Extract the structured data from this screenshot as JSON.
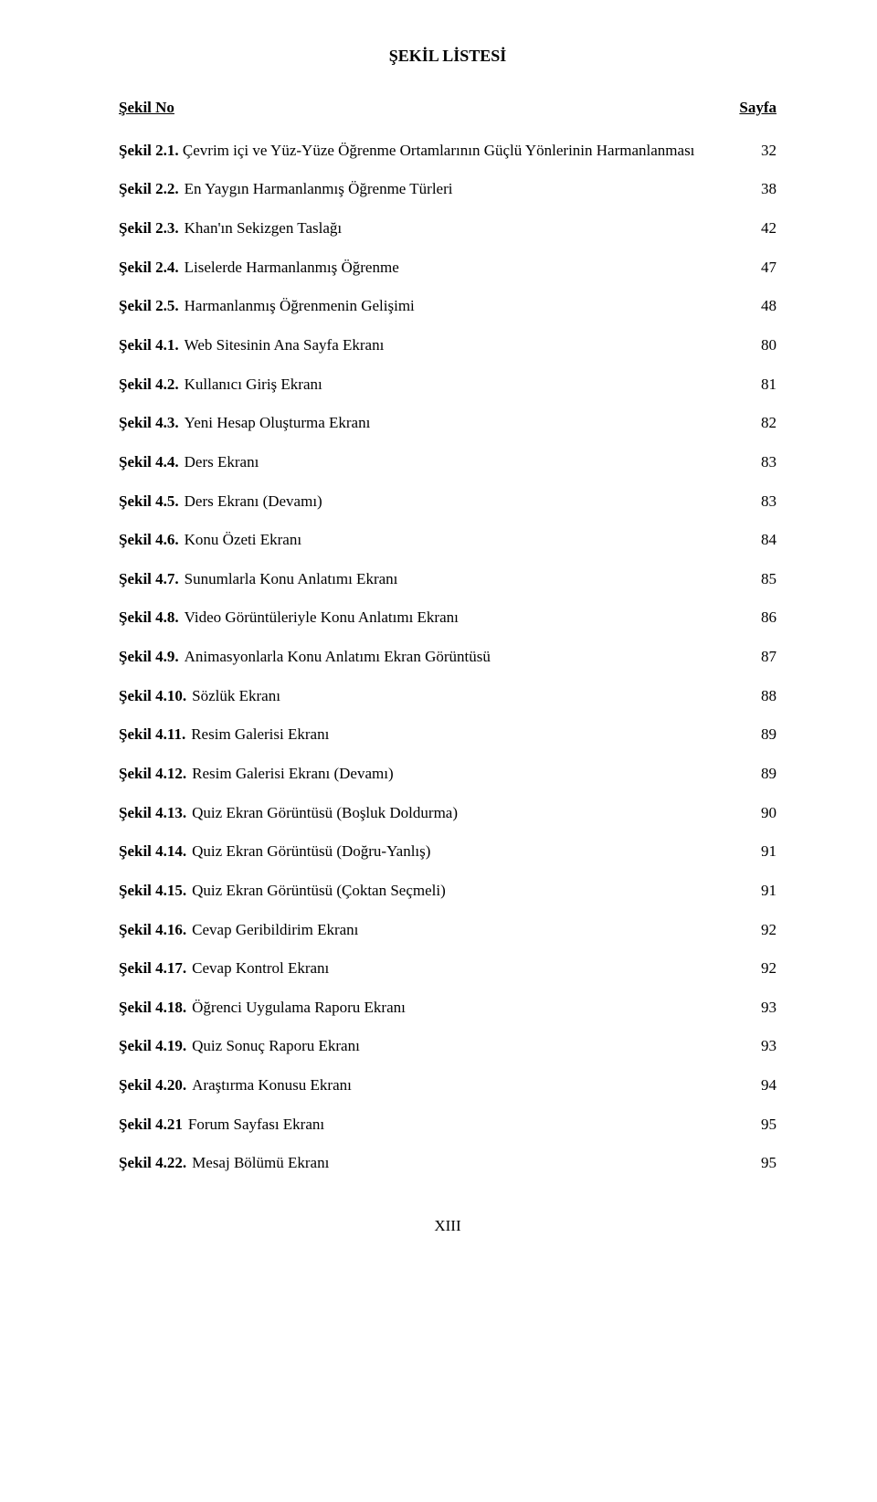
{
  "title": "ŞEKİL LİSTESİ",
  "header": {
    "left": "Şekil No",
    "right": "Sayfa"
  },
  "entries": [
    {
      "key": "Şekil 2.1.",
      "desc": "Çevrim içi ve Yüz-Yüze Öğrenme Ortamlarının Güçlü Yönlerinin Harmanlanması",
      "page": "32",
      "multiline": true
    },
    {
      "key": "Şekil 2.2.",
      "desc": "En Yaygın Harmanlanmış Öğrenme Türleri",
      "page": "38"
    },
    {
      "key": "Şekil 2.3.",
      "desc": "Khan'ın Sekizgen Taslağı",
      "page": "42"
    },
    {
      "key": "Şekil 2.4.",
      "desc": "Liselerde Harmanlanmış Öğrenme",
      "page": "47"
    },
    {
      "key": "Şekil 2.5.",
      "desc": "Harmanlanmış Öğrenmenin Gelişimi",
      "page": "48"
    },
    {
      "key": "Şekil 4.1.",
      "desc": "Web Sitesinin Ana Sayfa Ekranı",
      "page": "80"
    },
    {
      "key": "Şekil 4.2.",
      "desc": "Kullanıcı Giriş Ekranı",
      "page": "81"
    },
    {
      "key": "Şekil 4.3.",
      "desc": "Yeni Hesap Oluşturma Ekranı",
      "page": "82"
    },
    {
      "key": "Şekil 4.4.",
      "desc": "Ders Ekranı",
      "page": "83"
    },
    {
      "key": "Şekil 4.5.",
      "desc": "Ders Ekranı (Devamı)",
      "page": "83"
    },
    {
      "key": "Şekil 4.6.",
      "desc": "Konu Özeti Ekranı",
      "page": "84"
    },
    {
      "key": "Şekil 4.7.",
      "desc": "Sunumlarla Konu Anlatımı Ekranı",
      "page": "85"
    },
    {
      "key": "Şekil 4.8.",
      "desc": "Video Görüntüleriyle Konu Anlatımı Ekranı",
      "page": "86"
    },
    {
      "key": "Şekil 4.9.",
      "desc": "Animasyonlarla Konu Anlatımı Ekran Görüntüsü",
      "page": "87"
    },
    {
      "key": "Şekil 4.10.",
      "desc": "Sözlük Ekranı",
      "page": "88"
    },
    {
      "key": "Şekil 4.11.",
      "desc": "Resim Galerisi Ekranı",
      "page": "89"
    },
    {
      "key": "Şekil 4.12.",
      "desc": "Resim Galerisi Ekranı (Devamı)",
      "page": "89"
    },
    {
      "key": "Şekil 4.13.",
      "desc": "Quiz Ekran Görüntüsü (Boşluk Doldurma)",
      "page": "90"
    },
    {
      "key": "Şekil 4.14.",
      "desc": "Quiz Ekran Görüntüsü (Doğru-Yanlış)",
      "page": "91"
    },
    {
      "key": "Şekil 4.15.",
      "desc": "Quiz Ekran Görüntüsü (Çoktan Seçmeli)",
      "page": "91"
    },
    {
      "key": "Şekil 4.16.",
      "desc": "Cevap Geribildirim Ekranı",
      "page": "92"
    },
    {
      "key": "Şekil 4.17.",
      "desc": "Cevap Kontrol Ekranı",
      "page": "92"
    },
    {
      "key": "Şekil 4.18.",
      "desc": "Öğrenci Uygulama Raporu Ekranı",
      "page": "93"
    },
    {
      "key": "Şekil 4.19.",
      "desc": "Quiz Sonuç Raporu Ekranı",
      "page": "93"
    },
    {
      "key": "Şekil 4.20.",
      "desc": "Araştırma Konusu Ekranı",
      "page": "94"
    },
    {
      "key": "Şekil 4.21",
      "desc": "Forum Sayfası Ekranı",
      "page": "95"
    },
    {
      "key": "Şekil 4.22.",
      "desc": "Mesaj Bölümü Ekranı",
      "page": "95"
    }
  ],
  "footer": "XIII"
}
